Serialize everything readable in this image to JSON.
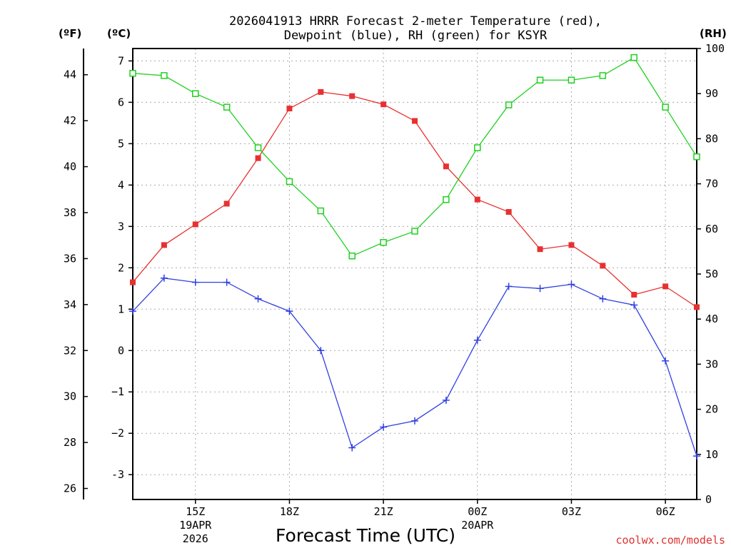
{
  "chart_data": {
    "type": "line",
    "title": "2026041913 HRRR Forecast 2-meter Temperature (red),",
    "title_line2": "Dewpoint (blue), RH (green) for KSYR",
    "xlabel": "Forecast Time (UTC)",
    "credit": "coolwx.com/models",
    "units": {
      "fahrenheit": "(ºF)",
      "celsius": "(ºC)",
      "rh": "(RH)"
    },
    "hours_from_13z": [
      0,
      1,
      2,
      3,
      4,
      5,
      6,
      7,
      8,
      9,
      10,
      11,
      12,
      13,
      14,
      15,
      16,
      17,
      18
    ],
    "x_ticks": [
      {
        "hour": 2,
        "label": "15Z",
        "sub1": "19APR",
        "sub2": "2026"
      },
      {
        "hour": 5,
        "label": "18Z"
      },
      {
        "hour": 8,
        "label": "21Z"
      },
      {
        "hour": 11,
        "label": "00Z",
        "sub1": "20APR"
      },
      {
        "hour": 14,
        "label": "03Z"
      },
      {
        "hour": 17,
        "label": "06Z"
      }
    ],
    "celsius_ticks": [
      "-3",
      "−2",
      "−1",
      "0",
      "1",
      "2",
      "3",
      "4",
      "5",
      "6",
      "7"
    ],
    "celsius_tick_values": [
      -3,
      -2,
      -1,
      0,
      1,
      2,
      3,
      4,
      5,
      6,
      7
    ],
    "fahrenheit_ticks": [
      "26",
      "28",
      "30",
      "32",
      "34",
      "36",
      "38",
      "40",
      "42",
      "44"
    ],
    "fahrenheit_tick_values": [
      26,
      28,
      30,
      32,
      34,
      36,
      38,
      40,
      42,
      44
    ],
    "rh_ticks": [
      "0",
      "10",
      "20",
      "30",
      "40",
      "50",
      "60",
      "70",
      "80",
      "90",
      "100"
    ],
    "rh_tick_values": [
      0,
      10,
      20,
      30,
      40,
      50,
      60,
      70,
      80,
      90,
      100
    ],
    "celsius_range": [
      -3.6,
      7.3
    ],
    "rh_range": [
      0,
      100
    ],
    "series": [
      {
        "name": "Temperature",
        "unit": "C",
        "color": "#e83030",
        "marker": "square-filled",
        "values": [
          1.65,
          2.55,
          3.05,
          3.55,
          4.65,
          5.85,
          6.25,
          6.15,
          5.95,
          5.55,
          4.45,
          3.65,
          3.35,
          2.45,
          2.55,
          2.05,
          1.35,
          1.55,
          1.05
        ]
      },
      {
        "name": "Dewpoint",
        "unit": "C",
        "color": "#3040e0",
        "marker": "plus",
        "values": [
          0.95,
          1.75,
          1.65,
          1.65,
          1.25,
          0.95,
          0.0,
          -2.35,
          -1.85,
          -1.7,
          -1.2,
          0.25,
          1.55,
          1.5,
          1.6,
          1.25,
          1.1,
          -0.25,
          -2.55
        ]
      },
      {
        "name": "RH",
        "unit": "%",
        "color": "#20d020",
        "marker": "square-open",
        "values": [
          94.5,
          94.0,
          90.0,
          87.0,
          78.0,
          70.5,
          64.0,
          54.0,
          57.0,
          59.5,
          66.5,
          78.0,
          87.5,
          93.0,
          93.0,
          94.0,
          98.0,
          87.0,
          76.0
        ]
      }
    ]
  }
}
